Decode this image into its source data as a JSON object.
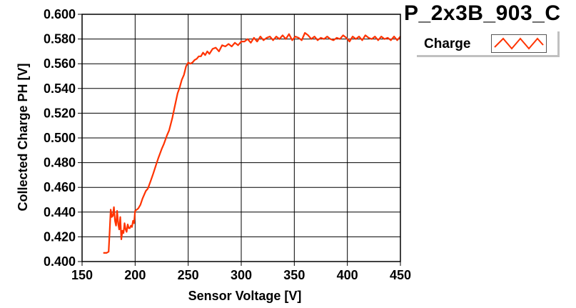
{
  "chart_data": {
    "type": "line",
    "title": "P_2x3B_903_C",
    "xlabel": "Sensor Voltage [V]",
    "ylabel": "Collected Charge PH [V]",
    "xlim": [
      150,
      450
    ],
    "ylim": [
      0.4,
      0.6
    ],
    "xticks": [
      "150",
      "200",
      "250",
      "300",
      "350",
      "400",
      "450"
    ],
    "yticks": [
      "0.400",
      "0.420",
      "0.440",
      "0.460",
      "0.480",
      "0.500",
      "0.520",
      "0.540",
      "0.560",
      "0.580",
      "0.600"
    ],
    "grid": true,
    "legend_position": "top-right",
    "series": [
      {
        "name": "Charge",
        "color": "#ff3300",
        "x": [
          170,
          173,
          175,
          176,
          177,
          178,
          179,
          180,
          181,
          182,
          183,
          184,
          185,
          186,
          187,
          188,
          189,
          190,
          191,
          192,
          193,
          194,
          195,
          196,
          197,
          198,
          199,
          200,
          203,
          205,
          207,
          210,
          212,
          215,
          217,
          220,
          222,
          225,
          227,
          230,
          232,
          235,
          237,
          240,
          242,
          244,
          246,
          248,
          250,
          252,
          254,
          256,
          258,
          260,
          262,
          264,
          266,
          268,
          270,
          273,
          276,
          279,
          282,
          285,
          288,
          291,
          294,
          297,
          300,
          303,
          306,
          309,
          312,
          315,
          318,
          321,
          324,
          327,
          330,
          333,
          336,
          339,
          342,
          345,
          348,
          351,
          354,
          357,
          360,
          363,
          366,
          369,
          372,
          375,
          378,
          381,
          384,
          387,
          390,
          393,
          396,
          399,
          402,
          405,
          408,
          411,
          414,
          417,
          420,
          423,
          426,
          429,
          432,
          435,
          438,
          441,
          444,
          447,
          450
        ],
        "values": [
          0.407,
          0.407,
          0.408,
          0.425,
          0.442,
          0.436,
          0.437,
          0.444,
          0.433,
          0.429,
          0.441,
          0.431,
          0.426,
          0.436,
          0.418,
          0.425,
          0.423,
          0.431,
          0.426,
          0.424,
          0.43,
          0.427,
          0.427,
          0.429,
          0.428,
          0.433,
          0.431,
          0.441,
          0.443,
          0.446,
          0.451,
          0.457,
          0.459,
          0.466,
          0.471,
          0.479,
          0.484,
          0.491,
          0.495,
          0.502,
          0.506,
          0.516,
          0.524,
          0.536,
          0.541,
          0.547,
          0.551,
          0.558,
          0.561,
          0.56,
          0.561,
          0.563,
          0.564,
          0.566,
          0.566,
          0.569,
          0.567,
          0.57,
          0.568,
          0.572,
          0.573,
          0.57,
          0.575,
          0.574,
          0.576,
          0.574,
          0.577,
          0.575,
          0.578,
          0.578,
          0.58,
          0.577,
          0.581,
          0.578,
          0.582,
          0.579,
          0.581,
          0.582,
          0.579,
          0.582,
          0.58,
          0.583,
          0.58,
          0.584,
          0.579,
          0.582,
          0.581,
          0.579,
          0.585,
          0.583,
          0.58,
          0.582,
          0.579,
          0.581,
          0.58,
          0.582,
          0.58,
          0.579,
          0.581,
          0.58,
          0.583,
          0.581,
          0.578,
          0.582,
          0.58,
          0.582,
          0.579,
          0.583,
          0.581,
          0.58,
          0.582,
          0.579,
          0.582,
          0.58,
          0.581,
          0.579,
          0.582,
          0.579,
          0.582
        ]
      }
    ]
  }
}
